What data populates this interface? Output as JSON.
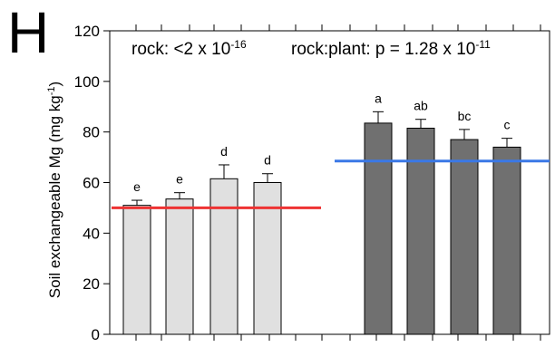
{
  "panel_label": "H",
  "chart_data": {
    "type": "bar",
    "ylabel": "Soil exchangeable Mg (mg kg-1)",
    "ylabel_base": "Soil exchangeable Mg (mg kg",
    "ylabel_sup": "-1",
    "ylabel_close": ")",
    "ylim": [
      0,
      120
    ],
    "yticks": [
      0,
      20,
      40,
      60,
      80,
      100,
      120
    ],
    "grid": false,
    "groups": [
      {
        "fill": "#e0e0e0",
        "values": [
          51,
          53.5,
          61.5,
          60
        ],
        "errors": [
          2,
          2.5,
          5.5,
          3.5
        ],
        "letters": [
          "e",
          "e",
          "d",
          "d"
        ],
        "mean_line": {
          "value": 50,
          "color": "#ee3333"
        }
      },
      {
        "fill": "#707070",
        "values": [
          83.5,
          81.5,
          77,
          74
        ],
        "errors": [
          4.5,
          3.5,
          4,
          3.5
        ],
        "letters": [
          "a",
          "ab",
          "bc",
          "c"
        ],
        "mean_line": {
          "value": 68.5,
          "color": "#3a78e6"
        }
      }
    ],
    "annotations": {
      "rock_label": "rock: <2 x 10",
      "rock_exp": "-16",
      "rockplant_label": "rock:plant: p = 1.28 x 10",
      "rockplant_exp": "-11"
    }
  }
}
